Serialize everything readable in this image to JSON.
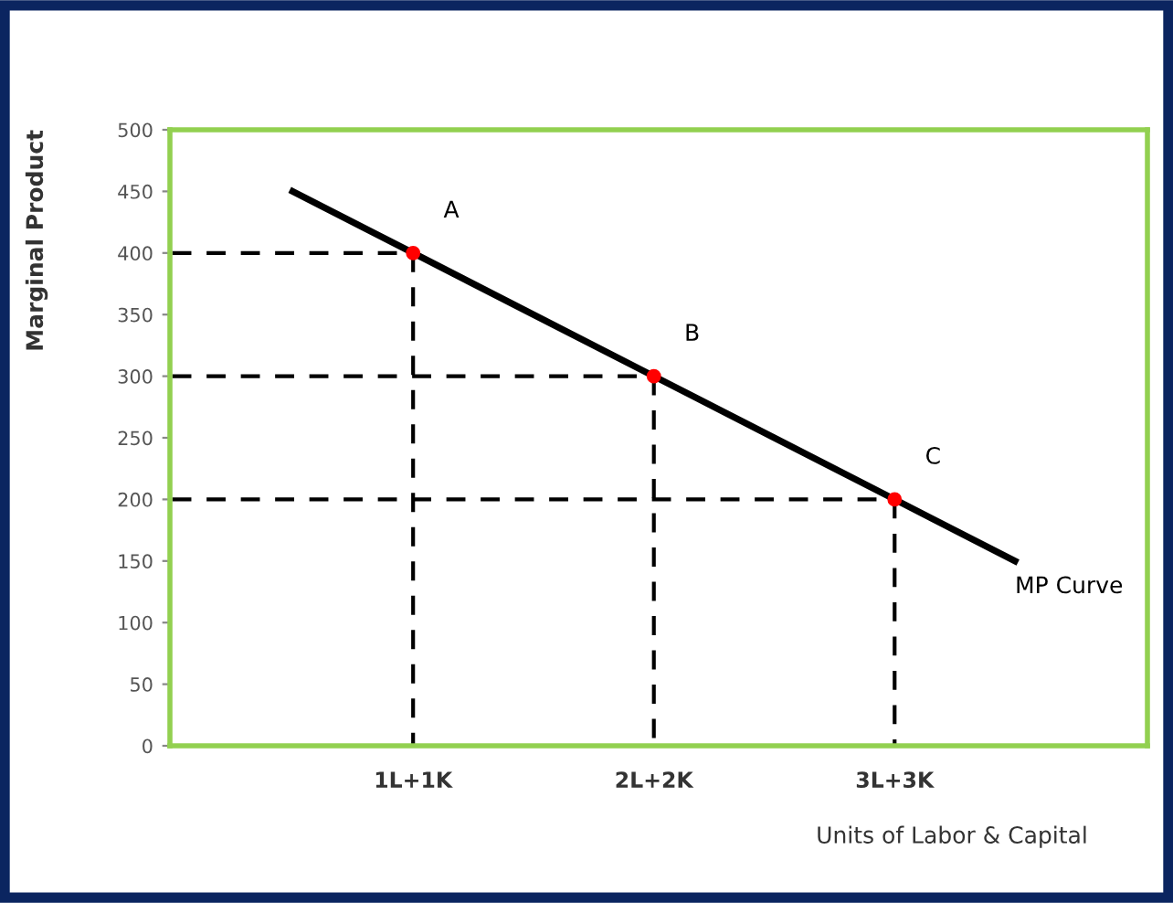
{
  "chart_data": {
    "type": "line",
    "xlabel": "Units of Labor & Capital",
    "ylabel": "Marginal Product",
    "categories": [
      null,
      null,
      "1L+1K",
      null,
      "2L+2K",
      null,
      "3L+3K",
      null
    ],
    "ylim": [
      0,
      500
    ],
    "yticks": [
      0,
      50,
      100,
      150,
      200,
      250,
      300,
      350,
      400,
      450,
      500
    ],
    "grid": false,
    "legend": false,
    "series": [
      {
        "name": "MP Curve",
        "color": "#000000",
        "line_style": "solid",
        "values": [
          null,
          450,
          400,
          350,
          300,
          250,
          200,
          150
        ]
      },
      {
        "color": "#000000",
        "line_style": "dashed",
        "values": [
          400,
          400,
          400,
          null,
          null,
          null,
          null,
          null
        ]
      },
      {
        "color": "#000000",
        "line_style": "dashed",
        "values": [
          300,
          300,
          300,
          300,
          300,
          null,
          null,
          null
        ]
      },
      {
        "color": "#000000",
        "line_style": "dashed",
        "values": [
          200,
          200,
          200,
          200,
          200,
          200,
          200,
          null
        ]
      },
      {
        "color": "#000000",
        "line_style": "dashed",
        "x": [
          "1L+1K",
          "1L+1K"
        ],
        "values": [
          400,
          0
        ]
      },
      {
        "color": "#000000",
        "line_style": "dashed",
        "x": [
          "2L+2K",
          "2L+2K"
        ],
        "values": [
          300,
          0
        ]
      },
      {
        "color": "#000000",
        "line_style": "dashed",
        "x": [
          "3L+3K",
          "3L+3K"
        ],
        "values": [
          200,
          0
        ]
      },
      {
        "type": "scatter",
        "color": "#ff0000",
        "marker": "circle",
        "x": [
          "1L+1K",
          "2L+2K",
          "3L+3K"
        ],
        "values": [
          400,
          300,
          200
        ]
      }
    ],
    "annotations": [
      {
        "text": "A",
        "x": "1L+1K",
        "y": 400
      },
      {
        "text": "B",
        "x": "2L+2K",
        "y": 300
      },
      {
        "text": "C",
        "x": "3L+3K",
        "y": 200
      }
    ]
  }
}
